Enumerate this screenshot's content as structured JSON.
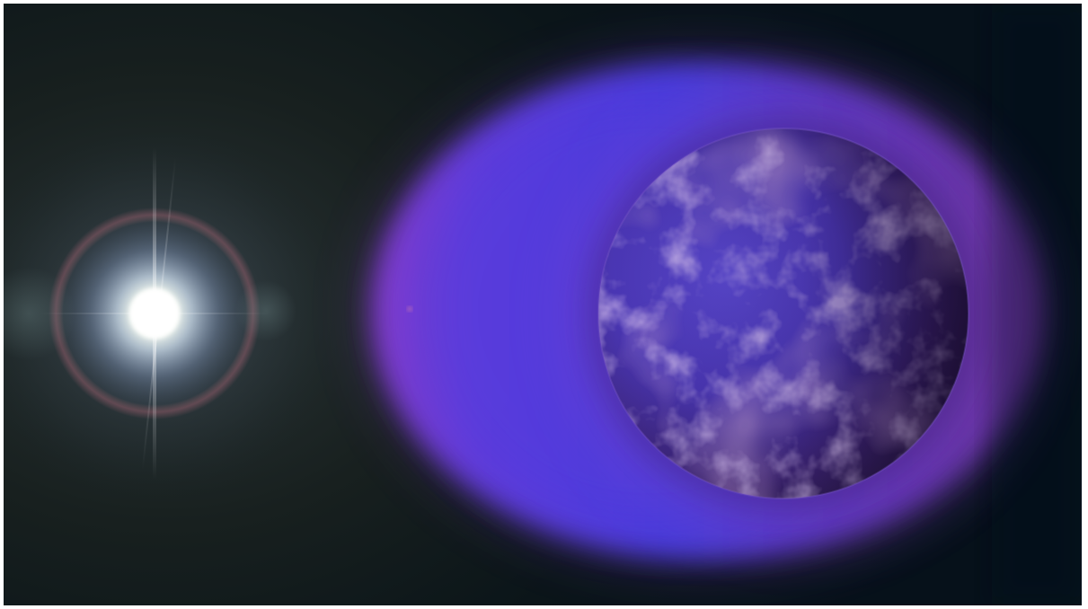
{
  "image": {
    "subject": "",
    "colors": {
      "space_dark": "#06111a",
      "space_mid": "#18201f",
      "star_core": "#ffffff",
      "star_halo": "#9fb3d6",
      "envelope_blue": "#4b3ee0",
      "envelope_violet": "#8a3ed0",
      "planet_dark": "#2a1a4a",
      "planet_light": "#7a5ac8"
    }
  }
}
